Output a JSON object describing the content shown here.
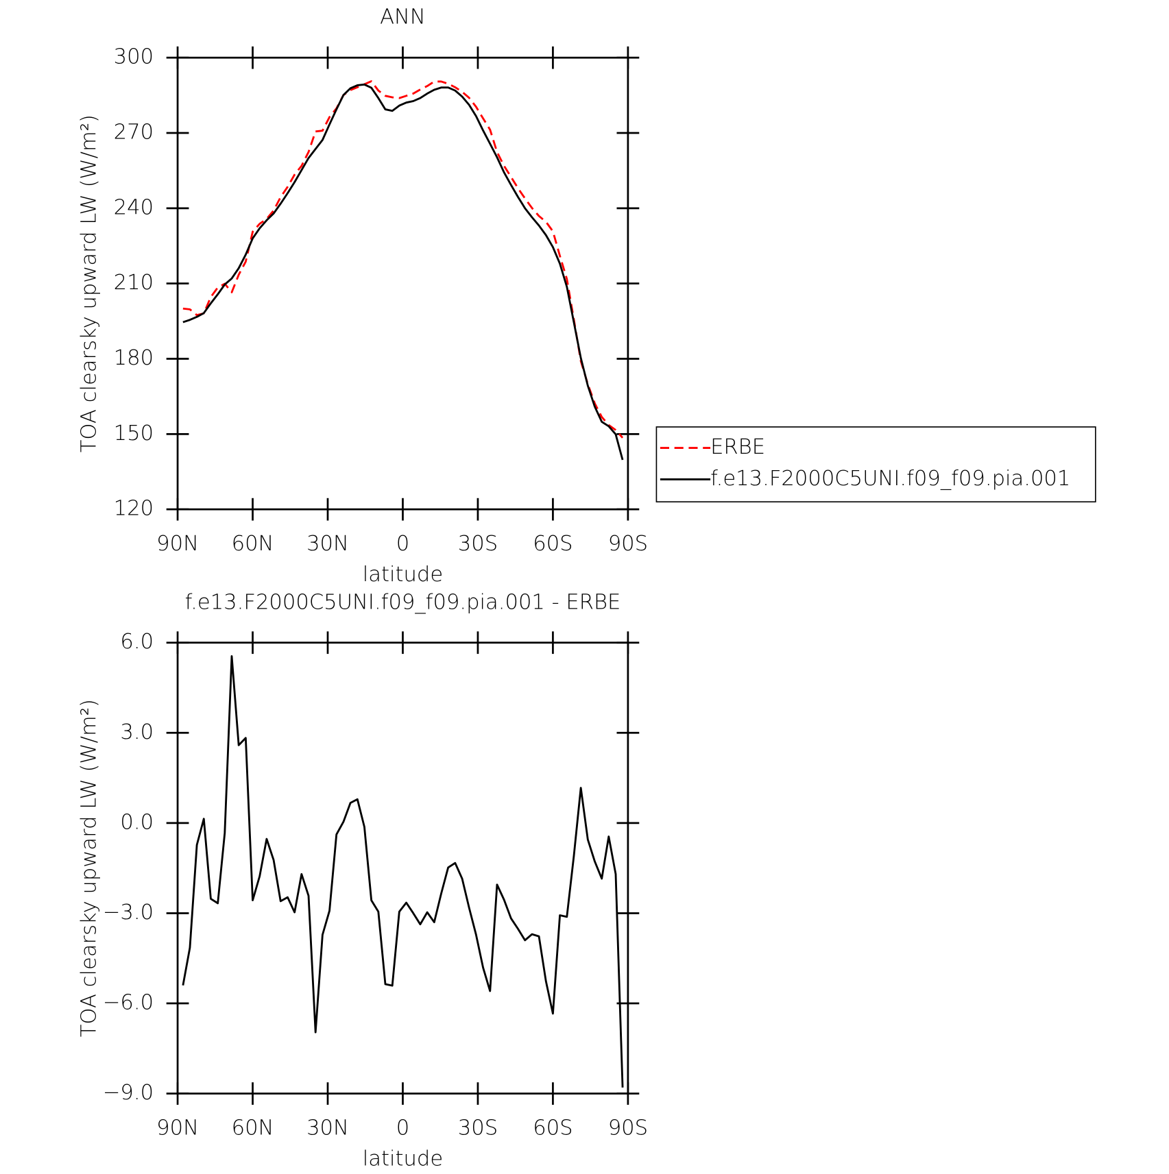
{
  "chart_data": [
    {
      "type": "line",
      "title": "ANN",
      "xlabel": "latitude",
      "ylabel": "TOA clearsky upward LW (W/m²)",
      "x": [
        87.86,
        85.1,
        82.31,
        79.53,
        76.74,
        73.95,
        71.16,
        68.37,
        65.58,
        62.79,
        60.0,
        57.21,
        54.42,
        51.63,
        48.84,
        46.04,
        43.25,
        40.46,
        37.67,
        34.88,
        32.09,
        29.3,
        26.51,
        23.72,
        20.93,
        18.14,
        15.35,
        12.56,
        9.77,
        6.98,
        4.19,
        1.4,
        -1.4,
        -4.19,
        -6.98,
        -9.77,
        -12.56,
        -15.35,
        -18.14,
        -20.93,
        -23.72,
        -26.51,
        -29.3,
        -32.09,
        -34.88,
        -37.67,
        -40.46,
        -43.25,
        -46.04,
        -48.84,
        -51.63,
        -54.42,
        -57.21,
        -60.0,
        -62.79,
        -65.58,
        -68.37,
        -71.16,
        -73.95,
        -76.74,
        -79.53,
        -82.31,
        -85.1,
        -87.86
      ],
      "xlim": [
        90,
        -90
      ],
      "xticks": [
        {
          "value": 90,
          "label": "90N"
        },
        {
          "value": 60,
          "label": "60N"
        },
        {
          "value": 30,
          "label": "30N"
        },
        0,
        {
          "value": -30,
          "label": "30S"
        },
        {
          "value": -60,
          "label": "60S"
        },
        {
          "value": -90,
          "label": "90S"
        }
      ],
      "ylim": [
        120,
        300
      ],
      "yticks": [
        120,
        150,
        180,
        210,
        240,
        270,
        300
      ],
      "grid": false,
      "legend": "right",
      "series": [
        {
          "name": "ERBE",
          "color": "#ff0000",
          "dashed": true,
          "values": [
            200.0,
            199.7,
            197.4,
            198.1,
            204.6,
            208.4,
            209.9,
            206.5,
            213.5,
            218.7,
            230.6,
            233.8,
            235.7,
            239.1,
            244.4,
            248.5,
            253.4,
            256.9,
            262.4,
            270.6,
            270.9,
            276.3,
            279.8,
            285.1,
            287.1,
            288.2,
            289.4,
            290.6,
            286.9,
            284.8,
            284.2,
            283.9,
            284.8,
            285.7,
            287.3,
            288.7,
            290.5,
            290.5,
            289.6,
            288.2,
            286.4,
            284.0,
            280.4,
            275.8,
            271.3,
            262.4,
            256.9,
            252.5,
            248.0,
            243.9,
            240.1,
            236.9,
            234.6,
            230.8,
            221.0,
            211.8,
            195.7,
            179.1,
            169.9,
            162.2,
            156.8,
            153.6,
            151.6,
            148.5
          ]
        },
        {
          "name": "f.e13.F2000C5UNI.f09_f09.pia.001",
          "color": "#000000",
          "dashed": false,
          "values": [
            194.6,
            195.5,
            196.7,
            198.2,
            202.1,
            205.7,
            209.6,
            212.0,
            216.1,
            221.5,
            228.0,
            232.0,
            235.2,
            237.9,
            241.8,
            246.0,
            250.4,
            255.2,
            260.0,
            263.6,
            267.2,
            273.4,
            279.4,
            285.1,
            287.8,
            289.0,
            289.3,
            288.0,
            283.9,
            279.4,
            278.8,
            280.9,
            282.1,
            282.7,
            283.9,
            285.7,
            287.2,
            288.1,
            288.1,
            286.9,
            284.5,
            281.2,
            276.7,
            271.0,
            265.7,
            260.3,
            254.3,
            249.3,
            244.5,
            240.0,
            236.4,
            233.1,
            229.3,
            224.5,
            217.9,
            208.7,
            194.6,
            180.3,
            169.3,
            160.9,
            154.9,
            153.1,
            149.9,
            139.7
          ]
        }
      ]
    },
    {
      "type": "line",
      "title": "f.e13.F2000C5UNI.f09_f09.pia.001 - ERBE",
      "xlabel": "latitude",
      "ylabel": "TOA clearsky upward LW (W/m²)",
      "x": [
        87.86,
        85.1,
        82.31,
        79.53,
        76.74,
        73.95,
        71.16,
        68.37,
        65.58,
        62.79,
        60.0,
        57.21,
        54.42,
        51.63,
        48.84,
        46.04,
        43.25,
        40.46,
        37.67,
        34.88,
        32.09,
        29.3,
        26.51,
        23.72,
        20.93,
        18.14,
        15.35,
        12.56,
        9.77,
        6.98,
        4.19,
        1.4,
        -1.4,
        -4.19,
        -6.98,
        -9.77,
        -12.56,
        -15.35,
        -18.14,
        -20.93,
        -23.72,
        -26.51,
        -29.3,
        -32.09,
        -34.88,
        -37.67,
        -40.46,
        -43.25,
        -46.04,
        -48.84,
        -51.63,
        -54.42,
        -57.21,
        -60.0,
        -62.79,
        -65.58,
        -68.37,
        -71.16,
        -73.95,
        -76.74,
        -79.53,
        -82.31,
        -85.1,
        -87.86
      ],
      "xlim": [
        90,
        -90
      ],
      "xticks": [
        {
          "value": 90,
          "label": "90N"
        },
        {
          "value": 60,
          "label": "60N"
        },
        {
          "value": 30,
          "label": "30N"
        },
        0,
        {
          "value": -30,
          "label": "30S"
        },
        {
          "value": -60,
          "label": "60S"
        },
        {
          "value": -90,
          "label": "90S"
        }
      ],
      "ylim": [
        -9,
        6
      ],
      "yticks": [
        {
          "value": -9,
          "label": "−9.0"
        },
        {
          "value": -6,
          "label": "−6.0"
        },
        {
          "value": -3,
          "label": "−3.0"
        },
        {
          "value": 0,
          "label": "0.0"
        },
        {
          "value": 3,
          "label": "3.0"
        },
        {
          "value": 6,
          "label": "6.0"
        }
      ],
      "grid": false,
      "color": "#000000",
      "values": [
        -5.4,
        -4.15,
        -0.73,
        0.14,
        -2.52,
        -2.67,
        -0.33,
        5.55,
        2.59,
        2.83,
        -2.57,
        -1.77,
        -0.53,
        -1.23,
        -2.6,
        -2.47,
        -2.97,
        -1.7,
        -2.42,
        -6.96,
        -3.72,
        -2.92,
        -0.38,
        0.04,
        0.67,
        0.79,
        -0.13,
        -2.57,
        -2.95,
        -5.36,
        -5.41,
        -2.95,
        -2.65,
        -3.0,
        -3.37,
        -2.97,
        -3.3,
        -2.35,
        -1.48,
        -1.33,
        -1.85,
        -2.82,
        -3.72,
        -4.81,
        -5.59,
        -2.05,
        -2.55,
        -3.17,
        -3.52,
        -3.9,
        -3.7,
        -3.77,
        -5.26,
        -6.34,
        -3.07,
        -3.12,
        -1.1,
        1.17,
        -0.55,
        -1.28,
        -1.85,
        -0.45,
        -1.7,
        -8.8
      ]
    }
  ]
}
